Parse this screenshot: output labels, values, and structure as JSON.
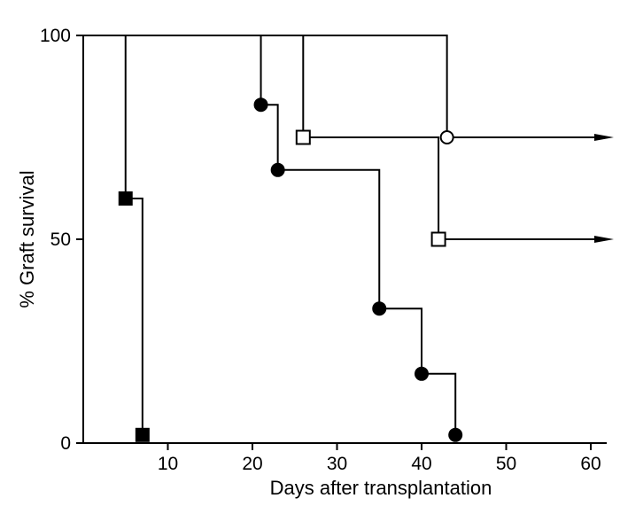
{
  "chart_data": {
    "type": "line",
    "subtype": "kaplan-meier-step",
    "xlabel": "Days after transplantation",
    "ylabel": "% Graft survival",
    "xlim": [
      0,
      62
    ],
    "ylim": [
      0,
      100
    ],
    "xticks": [
      10,
      20,
      30,
      40,
      50,
      60
    ],
    "yticks": [
      0,
      50,
      100
    ],
    "grid": false,
    "legend": "none",
    "series": [
      {
        "marker": "filled-square",
        "points": [
          {
            "x": 5,
            "y": 60
          },
          {
            "x": 7,
            "y": 2
          }
        ],
        "steps": [
          [
            0,
            100
          ],
          [
            5,
            100
          ],
          [
            5,
            60
          ],
          [
            7,
            60
          ],
          [
            7,
            2
          ]
        ],
        "continues": false
      },
      {
        "marker": "filled-circle",
        "points": [
          {
            "x": 21,
            "y": 83
          },
          {
            "x": 23,
            "y": 67
          },
          {
            "x": 35,
            "y": 33
          },
          {
            "x": 40,
            "y": 17
          },
          {
            "x": 44,
            "y": 2
          }
        ],
        "steps": [
          [
            0,
            100
          ],
          [
            21,
            100
          ],
          [
            21,
            83
          ],
          [
            23,
            83
          ],
          [
            23,
            67
          ],
          [
            35,
            67
          ],
          [
            35,
            33
          ],
          [
            40,
            33
          ],
          [
            40,
            17
          ],
          [
            44,
            17
          ],
          [
            44,
            2
          ]
        ],
        "continues": false
      },
      {
        "marker": "open-square",
        "points": [
          {
            "x": 26,
            "y": 75
          },
          {
            "x": 42,
            "y": 50
          }
        ],
        "steps": [
          [
            0,
            100
          ],
          [
            26,
            100
          ],
          [
            26,
            75
          ],
          [
            42,
            75
          ],
          [
            42,
            50
          ],
          [
            60,
            50
          ]
        ],
        "continues": true
      },
      {
        "marker": "open-circle",
        "points": [
          {
            "x": 43,
            "y": 75
          }
        ],
        "steps": [
          [
            0,
            100
          ],
          [
            43,
            100
          ],
          [
            43,
            75
          ],
          [
            60,
            75
          ]
        ],
        "continues": true
      }
    ]
  }
}
